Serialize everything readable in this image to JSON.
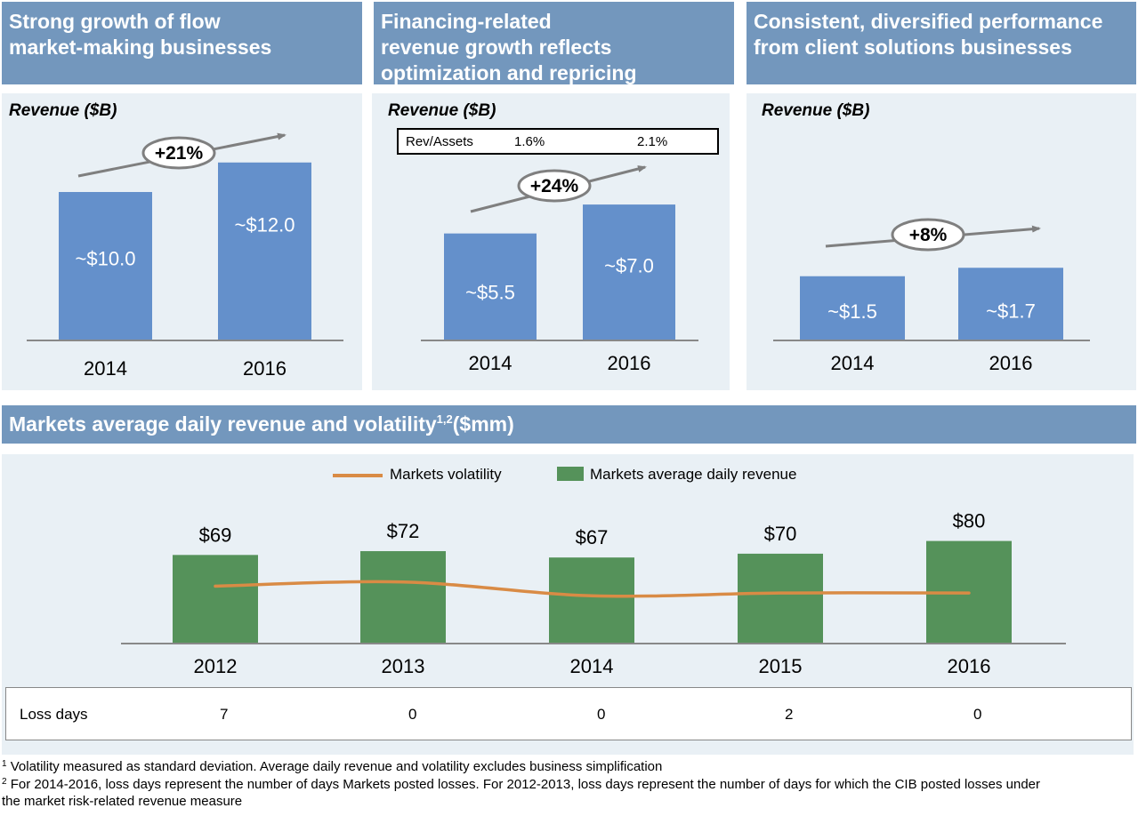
{
  "colors": {
    "header_bg": "#7397bd",
    "panel_bg": "#e9f0f5",
    "revenue_bar": "#6490cb",
    "markets_bar": "#55925a",
    "volatility_line": "#d98b45",
    "arrow": "#7f7f7f"
  },
  "panels": [
    {
      "title_lines": [
        "Strong growth of flow",
        "market-making businesses"
      ],
      "revenue_label": "Revenue ($B)",
      "growth": "+21%"
    },
    {
      "title_lines": [
        "Financing-related",
        "revenue growth reflects",
        "optimization and repricing"
      ],
      "revenue_label": "Revenue ($B)",
      "growth": "+24%",
      "rev_assets": {
        "label": "Rev/Assets",
        "v2014": "1.6%",
        "v2016": "2.1%"
      }
    },
    {
      "title_lines": [
        "Consistent, diversified performance",
        "from client solutions businesses"
      ],
      "revenue_label": "Revenue ($B)",
      "growth": "+8%"
    }
  ],
  "markets": {
    "title": "Markets average daily revenue and volatility",
    "title_sup": "1,2",
    "title_unit": "($mm)",
    "legend": {
      "line": "Markets volatility",
      "bar": "Markets average daily revenue"
    },
    "loss_days_label": "Loss days",
    "loss_days": [
      "7",
      "0",
      "0",
      "2",
      "0"
    ]
  },
  "footnotes": [
    {
      "sup": "1",
      "text": " Volatility measured as standard deviation. Average daily revenue and volatility excludes business simplification"
    },
    {
      "sup": "2",
      "text": " For 2014-2016, loss days represent the number of days Markets posted losses. For 2012-2013, loss days represent the number of days for which the CIB posted losses under"
    },
    {
      "sup": "",
      "text": "the market risk-related revenue measure"
    }
  ],
  "chart_data": [
    {
      "type": "bar",
      "title": "Strong growth of flow market-making businesses",
      "ylabel": "Revenue ($B)",
      "categories": [
        "2014",
        "2016"
      ],
      "values": [
        10.0,
        12.0
      ],
      "labels": [
        "~$10.0",
        "~$12.0"
      ],
      "annotation": "+21%"
    },
    {
      "type": "bar",
      "title": "Financing-related revenue growth reflects optimization and repricing",
      "ylabel": "Revenue ($B)",
      "categories": [
        "2014",
        "2016"
      ],
      "values": [
        5.5,
        7.0
      ],
      "labels": [
        "~$5.5",
        "~$7.0"
      ],
      "annotation": "+24%"
    },
    {
      "type": "bar",
      "title": "Consistent, diversified performance from client solutions businesses",
      "ylabel": "Revenue ($B)",
      "categories": [
        "2014",
        "2016"
      ],
      "values": [
        1.5,
        1.7
      ],
      "labels": [
        "~$1.5",
        "~$1.7"
      ],
      "annotation": "+8%"
    },
    {
      "type": "bar",
      "title": "Markets average daily revenue and volatility ($mm)",
      "categories": [
        "2012",
        "2013",
        "2014",
        "2015",
        "2016"
      ],
      "series": [
        {
          "name": "Markets average daily revenue",
          "type": "bar",
          "values": [
            69,
            72,
            67,
            70,
            80
          ],
          "labels": [
            "$69",
            "$72",
            "$67",
            "$70",
            "$80"
          ]
        },
        {
          "name": "Markets volatility",
          "type": "line",
          "values": [
            52,
            55,
            45,
            47,
            47
          ]
        }
      ],
      "ylim": [
        0,
        100
      ],
      "legend": "top-center"
    }
  ]
}
